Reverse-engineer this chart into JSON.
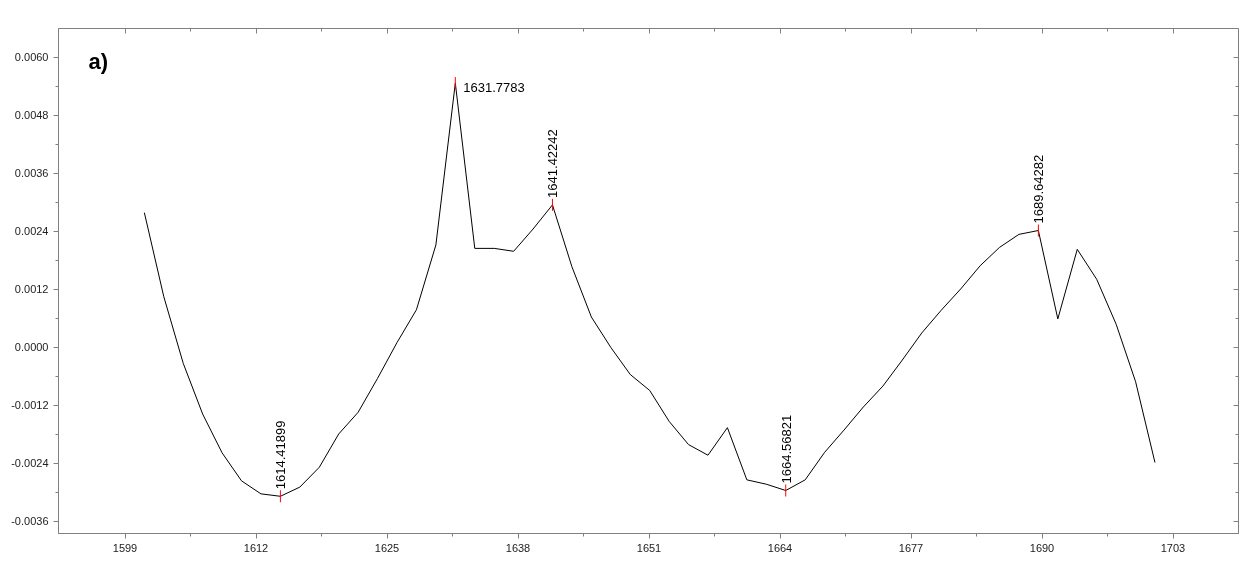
{
  "chart_data": {
    "type": "line",
    "x": [
      1600.92,
      1602.85,
      1604.78,
      1606.71,
      1608.63,
      1610.56,
      1612.49,
      1614.42,
      1616.35,
      1618.28,
      1620.21,
      1622.14,
      1624.06,
      1625.99,
      1627.92,
      1629.85,
      1631.78,
      1633.71,
      1635.64,
      1637.57,
      1639.49,
      1641.42,
      1643.35,
      1645.28,
      1647.21,
      1649.14,
      1651.07,
      1653.0,
      1654.92,
      1656.85,
      1658.78,
      1660.71,
      1662.64,
      1664.57,
      1666.5,
      1668.43,
      1670.35,
      1672.28,
      1674.21,
      1676.14,
      1678.07,
      1680.0,
      1681.93,
      1683.86,
      1685.78,
      1687.71,
      1689.64,
      1691.57,
      1693.5,
      1695.43,
      1697.36,
      1699.29,
      1701.21
    ],
    "series": [
      {
        "color": "#000000",
        "values": [
          0.00279,
          0.00105,
          -0.00033,
          -0.00138,
          -0.00218,
          -0.00276,
          -0.00303,
          -0.00308,
          -0.00289,
          -0.00248,
          -0.00179,
          -0.00134,
          -0.00064,
          0.0001,
          0.00078,
          0.00212,
          0.00547,
          0.00205,
          0.00205,
          0.00199,
          0.00245,
          0.00295,
          0.00167,
          0.00063,
          0.0,
          -0.00056,
          -0.00089,
          -0.00153,
          -0.00201,
          -0.00223,
          -0.00166,
          -0.00274,
          -0.00283,
          -0.00296,
          -0.00274,
          -0.00217,
          -0.00171,
          -0.00123,
          -0.0008,
          -0.00026,
          0.0003,
          0.00077,
          0.00121,
          0.00169,
          0.00207,
          0.00234,
          0.00242,
          0.00059,
          0.00203,
          0.00141,
          0.00048,
          -0.00071,
          -0.00238
        ]
      }
    ],
    "xlim": [
      1592.4,
      1709.5
    ],
    "ylim": [
      -0.00385,
      0.0066
    ],
    "xticks": [
      1599,
      1612,
      1625,
      1638,
      1651,
      1664,
      1677,
      1690,
      1703
    ],
    "yticks": [
      {
        "value": -0.0036,
        "label": "-0.0036"
      },
      {
        "value": -0.0024,
        "label": "-0.0024"
      },
      {
        "value": -0.0012,
        "label": "-0.0012"
      },
      {
        "value": 0,
        "label": "0.0000"
      },
      {
        "value": 0.0012,
        "label": "0.0012"
      },
      {
        "value": 0.0024,
        "label": "0.0024"
      },
      {
        "value": 0.0036,
        "label": "0.0036"
      },
      {
        "value": 0.0048,
        "label": "0.0048"
      },
      {
        "value": 0.006,
        "label": "0.0060"
      }
    ],
    "grid": false,
    "marker": "none",
    "line_style": "solid",
    "annotations": [
      "a)",
      {
        "text": "1614.41899",
        "x": 1614.42,
        "y": -0.00308
      },
      {
        "text": "1631.7783",
        "x": 1631.78,
        "y": 0.00547
      },
      {
        "text": "1641.42242",
        "x": 1641.42,
        "y": 0.00295
      },
      {
        "text": "1664.56821",
        "x": 1664.57,
        "y": -0.00296
      },
      {
        "text": "1689.64282",
        "x": 1689.64,
        "y": 0.00242
      }
    ]
  }
}
